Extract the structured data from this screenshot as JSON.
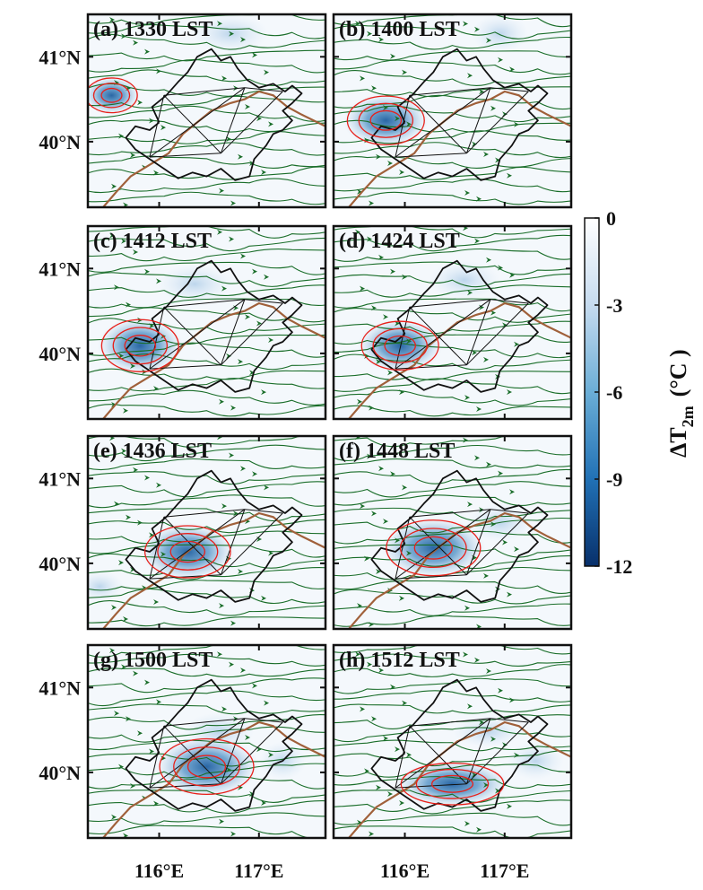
{
  "panels": [
    {
      "label": "(a) 1330 LST"
    },
    {
      "label": "(b) 1400 LST"
    },
    {
      "label": "(c) 1412 LST"
    },
    {
      "label": "(d) 1424 LST"
    },
    {
      "label": "(e) 1436 LST"
    },
    {
      "label": "(f) 1448 LST"
    },
    {
      "label": "(g) 1500 LST"
    },
    {
      "label": "(h) 1512 LST"
    }
  ],
  "lat_ticks": [
    "41°N",
    "40°N"
  ],
  "lon_ticks": [
    "116°E",
    "117°E"
  ],
  "colorbar": {
    "ticks": [
      "0",
      "-3",
      "-6",
      "-9",
      "-12"
    ],
    "title_main": "ΔT",
    "title_sub": "2m",
    "title_unit": "(°C )",
    "color_top": "#ffffff",
    "color_bottom": "#08306b"
  },
  "colors": {
    "streamline": "#1a6e2a",
    "boundary": "#111111",
    "river": "#a0603a",
    "contour": "#e8201a"
  }
}
